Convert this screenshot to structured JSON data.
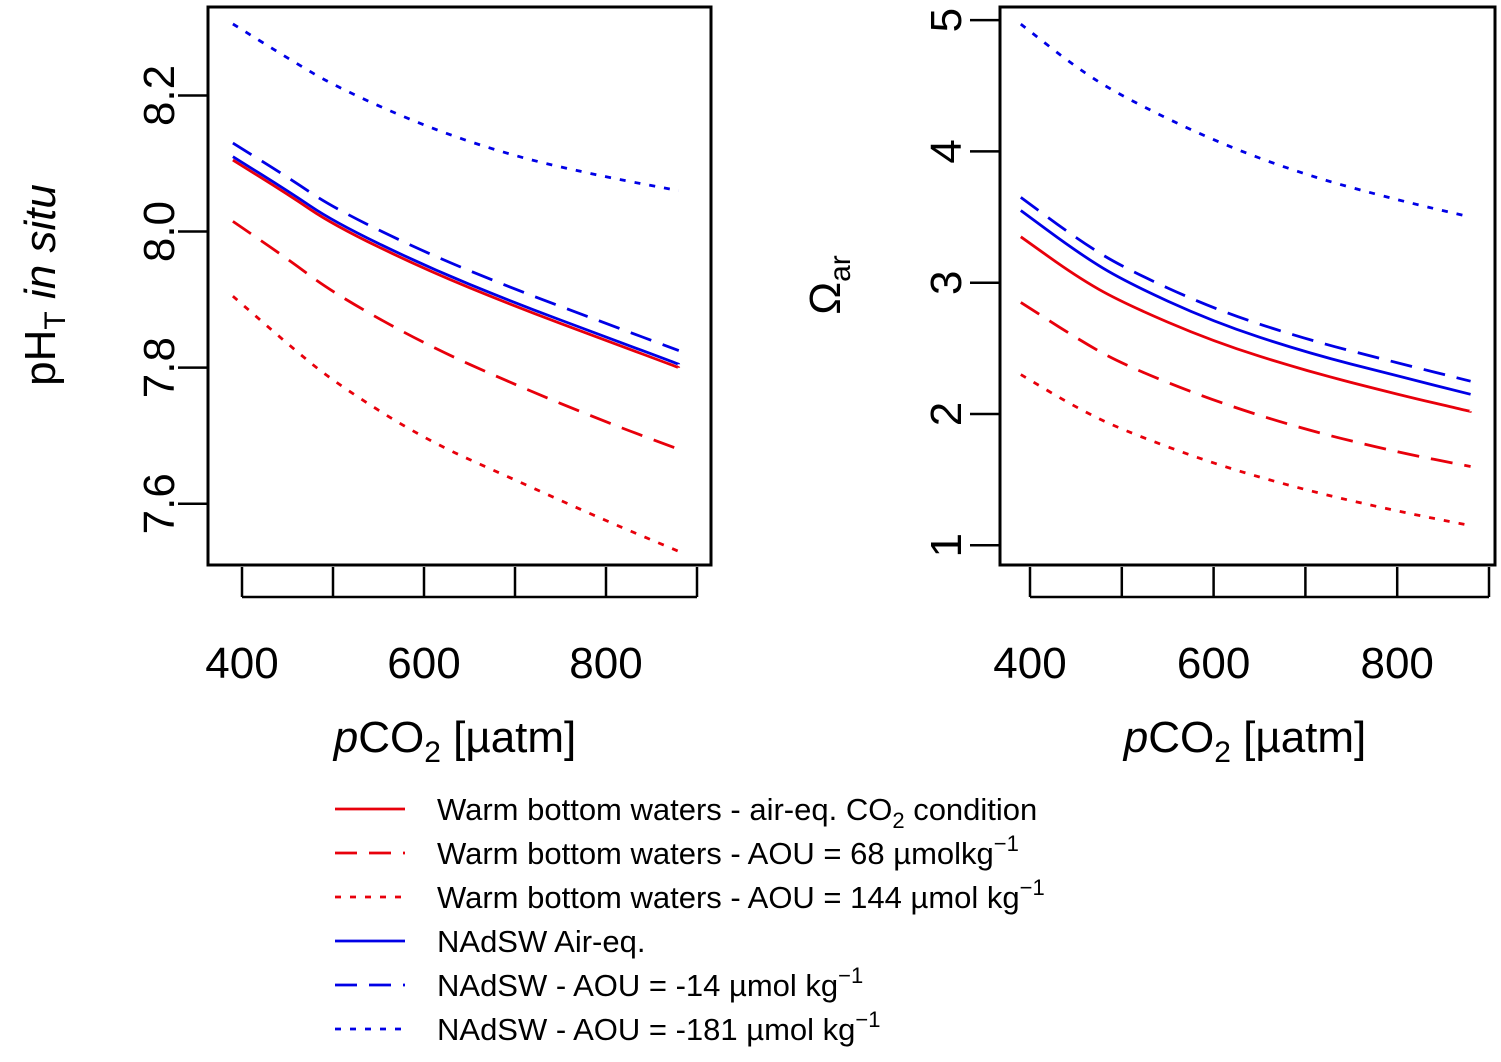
{
  "chart_data": [
    {
      "type": "line",
      "panel": "left",
      "xlabel": {
        "italic": "p",
        "main": "CO",
        "sub": "2",
        "rest": " [µatm]"
      },
      "ylabel": {
        "main": "pH",
        "sub": "T",
        "italic": " in situ"
      },
      "xlim": [
        380,
        900
      ],
      "ylim": [
        7.51,
        8.33
      ],
      "xticks": [
        400,
        500,
        600,
        700,
        800,
        900
      ],
      "xtick_labels": [
        "400",
        "",
        "600",
        "",
        "800",
        ""
      ],
      "yticks": [
        7.6,
        7.8,
        8.0,
        8.2
      ],
      "ytick_labels": [
        "7.6",
        "7.8",
        "8.0",
        "8.2"
      ],
      "series": [
        {
          "name": "Warm bottom waters - air-eq. CO2 condition",
          "color": "#e8000b",
          "dash": "solid",
          "x": [
            390,
            450,
            500,
            600,
            700,
            800,
            880
          ],
          "y": [
            8.105,
            8.055,
            8.01,
            7.945,
            7.89,
            7.84,
            7.8
          ]
        },
        {
          "name": "Warm bottom waters - AOU = 68 µmolkg-1",
          "color": "#e8000b",
          "dash": "dashed",
          "x": [
            390,
            450,
            500,
            600,
            700,
            800,
            880
          ],
          "y": [
            8.015,
            7.96,
            7.91,
            7.835,
            7.775,
            7.72,
            7.68
          ]
        },
        {
          "name": "Warm bottom waters - AOU = 144 µmol kg-1",
          "color": "#e8000b",
          "dash": "dotted",
          "x": [
            390,
            450,
            500,
            600,
            700,
            800,
            880
          ],
          "y": [
            7.905,
            7.835,
            7.78,
            7.695,
            7.635,
            7.575,
            7.53
          ]
        },
        {
          "name": "NAdSW Air-eq.",
          "color": "#0000e6",
          "dash": "solid",
          "x": [
            390,
            450,
            500,
            600,
            700,
            800,
            880
          ],
          "y": [
            8.11,
            8.06,
            8.015,
            7.95,
            7.895,
            7.845,
            7.805
          ]
        },
        {
          "name": "NAdSW - AOU = -14 µmol kg-1",
          "color": "#0000e6",
          "dash": "dashed",
          "x": [
            390,
            450,
            500,
            600,
            700,
            800,
            880
          ],
          "y": [
            8.13,
            8.08,
            8.035,
            7.97,
            7.915,
            7.865,
            7.825
          ]
        },
        {
          "name": "NAdSW - AOU = -181 µmol kg-1",
          "color": "#0000e6",
          "dash": "dotted",
          "x": [
            390,
            450,
            500,
            600,
            700,
            800,
            880
          ],
          "y": [
            8.305,
            8.255,
            8.215,
            8.155,
            8.11,
            8.08,
            8.06
          ]
        }
      ]
    },
    {
      "type": "line",
      "panel": "right",
      "xlabel": {
        "italic": "p",
        "main": "CO",
        "sub": "2",
        "rest": " [µatm]"
      },
      "ylabel": {
        "main": "Ω",
        "sub": "ar",
        "italic": ""
      },
      "xlim": [
        380,
        900
      ],
      "ylim": [
        0.85,
        5.1
      ],
      "xticks": [
        400,
        500,
        600,
        700,
        800,
        900
      ],
      "xtick_labels": [
        "400",
        "",
        "600",
        "",
        "800",
        ""
      ],
      "yticks": [
        1,
        2,
        3,
        4,
        5
      ],
      "ytick_labels": [
        "1",
        "2",
        "3",
        "4",
        "5"
      ],
      "series": [
        {
          "name": "Warm bottom waters - air-eq. CO2 condition",
          "color": "#e8000b",
          "dash": "solid",
          "x": [
            390,
            450,
            500,
            600,
            700,
            800,
            880
          ],
          "y": [
            3.35,
            3.05,
            2.85,
            2.55,
            2.33,
            2.15,
            2.02
          ]
        },
        {
          "name": "Warm bottom waters - AOU = 68 µmolkg-1",
          "color": "#e8000b",
          "dash": "dashed",
          "x": [
            390,
            450,
            500,
            600,
            700,
            800,
            880
          ],
          "y": [
            2.85,
            2.58,
            2.38,
            2.1,
            1.88,
            1.71,
            1.6
          ]
        },
        {
          "name": "Warm bottom waters - AOU = 144 µmol kg-1",
          "color": "#e8000b",
          "dash": "dotted",
          "x": [
            390,
            450,
            500,
            600,
            700,
            800,
            880
          ],
          "y": [
            2.3,
            2.05,
            1.88,
            1.62,
            1.42,
            1.26,
            1.15
          ]
        },
        {
          "name": "NAdSW Air-eq.",
          "color": "#0000e6",
          "dash": "solid",
          "x": [
            390,
            450,
            500,
            600,
            700,
            800,
            880
          ],
          "y": [
            3.55,
            3.24,
            3.02,
            2.7,
            2.47,
            2.29,
            2.15
          ]
        },
        {
          "name": "NAdSW - AOU = -14 µmol kg-1",
          "color": "#0000e6",
          "dash": "dashed",
          "x": [
            390,
            450,
            500,
            600,
            700,
            800,
            880
          ],
          "y": [
            3.65,
            3.34,
            3.12,
            2.8,
            2.57,
            2.39,
            2.25
          ]
        },
        {
          "name": "NAdSW - AOU = -181 µmol kg-1",
          "color": "#0000e6",
          "dash": "dotted",
          "x": [
            390,
            450,
            500,
            600,
            700,
            800,
            880
          ],
          "y": [
            4.97,
            4.64,
            4.42,
            4.08,
            3.82,
            3.63,
            3.5
          ]
        }
      ]
    }
  ],
  "legend": {
    "placement": "bottom-center",
    "items": [
      {
        "text": "Warm bottom waters - air-eq. CO",
        "sub": "2",
        "after": " condition",
        "sup": "",
        "color": "#e8000b",
        "dash": "solid"
      },
      {
        "text": "Warm bottom waters - AOU = 68 µmolkg",
        "sub": "",
        "after": "",
        "sup": "−1",
        "color": "#e8000b",
        "dash": "dashed"
      },
      {
        "text": "Warm bottom waters - AOU = 144 µmol kg",
        "sub": "",
        "after": "",
        "sup": "−1",
        "color": "#e8000b",
        "dash": "dotted"
      },
      {
        "text": "NAdSW Air-eq.",
        "sub": "",
        "after": "",
        "sup": "",
        "color": "#0000e6",
        "dash": "solid"
      },
      {
        "text": "NAdSW - AOU = -14 µmol kg",
        "sub": "",
        "after": "",
        "sup": "−1",
        "color": "#0000e6",
        "dash": "dashed"
      },
      {
        "text": "NAdSW - AOU = -181 µmol kg",
        "sub": "",
        "after": "",
        "sup": "−1",
        "color": "#0000e6",
        "dash": "dotted"
      }
    ]
  }
}
